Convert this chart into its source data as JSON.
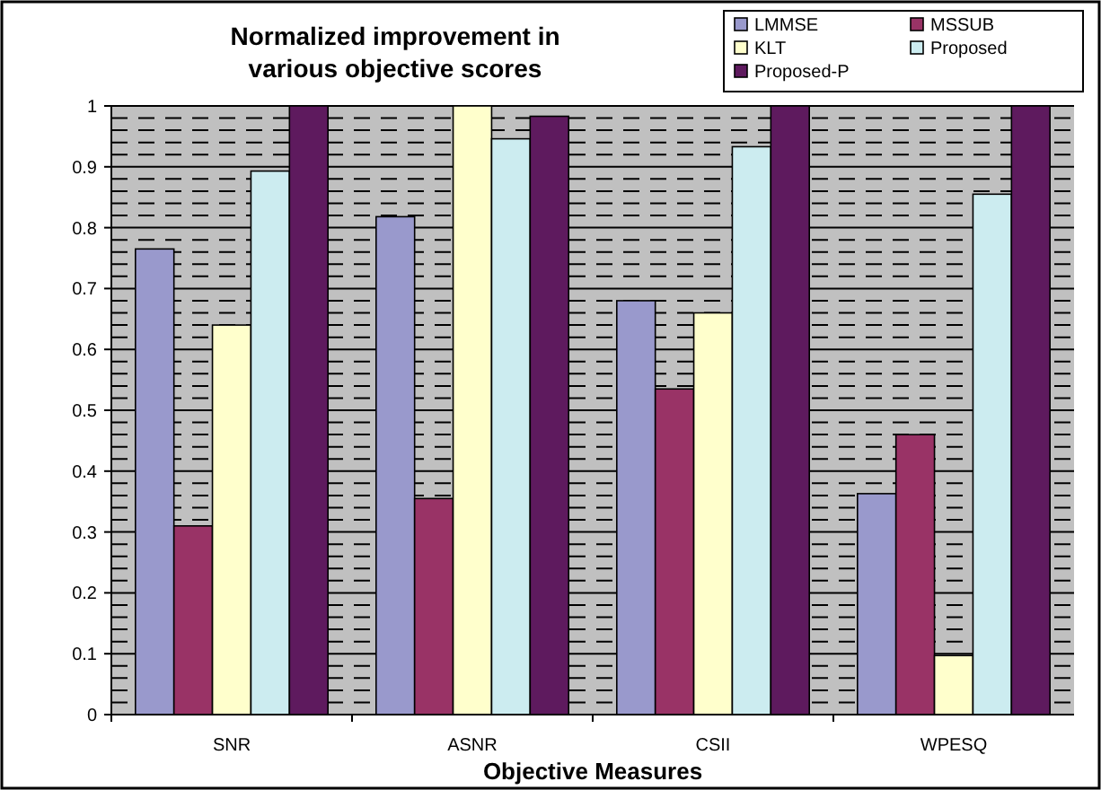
{
  "chart_data": {
    "type": "bar",
    "title": "Normalized improvement in various objective scores",
    "xlabel": "Objective Measures",
    "categories": [
      "SNR",
      "ASNR",
      "CSII",
      "WPESQ"
    ],
    "series": [
      {
        "name": "LMMSE",
        "color": "#9999cc",
        "values": [
          0.765,
          0.818,
          0.68,
          0.363
        ]
      },
      {
        "name": "MSSUB",
        "color": "#993366",
        "values": [
          0.31,
          0.355,
          0.535,
          0.46
        ]
      },
      {
        "name": "KLT",
        "color": "#ffffcc",
        "values": [
          0.64,
          1,
          0.66,
          0.097
        ]
      },
      {
        "name": "Proposed",
        "color": "#ccecf0",
        "values": [
          0.893,
          0.946,
          0.933,
          0.855
        ]
      },
      {
        "name": "Proposed-P",
        "color": "#5e1a5e",
        "values": [
          1,
          0.983,
          1,
          1
        ]
      }
    ],
    "ylim": [
      0,
      1
    ],
    "yticks": [
      0,
      0.1,
      0.2,
      0.3,
      0.4,
      0.5,
      0.6,
      0.7,
      0.8,
      0.9,
      1
    ],
    "grid": "y",
    "legend": "top right"
  }
}
